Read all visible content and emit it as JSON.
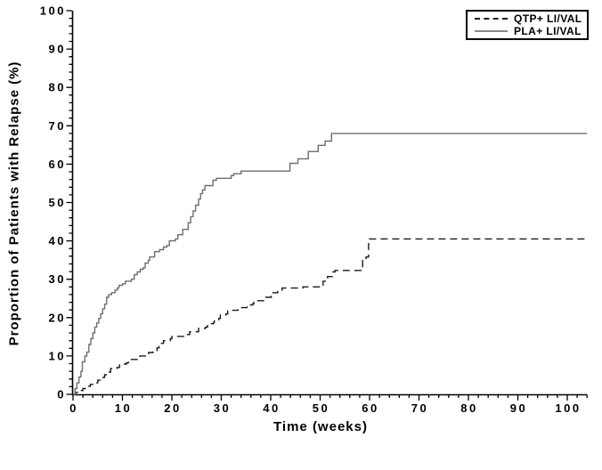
{
  "chart_data": {
    "type": "line",
    "subtype": "kaplan-meier-step",
    "title": "",
    "xlabel": "Time (weeks)",
    "ylabel": "Proportion of Patients with Relapse (%)",
    "xlim": [
      0,
      104
    ],
    "ylim": [
      0,
      100
    ],
    "x_ticks": [
      0,
      10,
      20,
      30,
      40,
      50,
      60,
      70,
      80,
      90,
      100
    ],
    "y_ticks": [
      0,
      10,
      20,
      30,
      40,
      50,
      60,
      70,
      80,
      90,
      100
    ],
    "minor_tick_step": 2,
    "grid": "off",
    "axis_color": "#000000",
    "legend": {
      "position": "top-right",
      "entries": [
        {
          "label": "QTP+ LI/VAL",
          "line_style": "dashed",
          "color": "#1a1a1a"
        },
        {
          "label": "PLA+ LI/VAL",
          "line_style": "solid",
          "color": "#8a8a8a"
        }
      ]
    },
    "series": [
      {
        "name": "QTP+ LI/VAL",
        "line_style": "dashed",
        "color": "#1a1a1a",
        "points": [
          [
            0,
            0
          ],
          [
            0.5,
            0.5
          ],
          [
            1.2,
            1.0
          ],
          [
            2.0,
            1.5
          ],
          [
            2.8,
            2.1
          ],
          [
            3.5,
            2.6
          ],
          [
            4.2,
            3.0
          ],
          [
            5.0,
            3.7
          ],
          [
            5.7,
            4.4
          ],
          [
            6.4,
            5.1
          ],
          [
            7.0,
            5.8
          ],
          [
            7.6,
            6.7
          ],
          [
            8.9,
            7.0
          ],
          [
            9.4,
            7.9
          ],
          [
            10.8,
            8.2
          ],
          [
            11.2,
            9.1
          ],
          [
            13.3,
            9.4
          ],
          [
            13.5,
            10.0
          ],
          [
            15.1,
            10.3
          ],
          [
            15.3,
            10.9
          ],
          [
            16.2,
            11.4
          ],
          [
            17.0,
            12.1
          ],
          [
            17.4,
            13.3
          ],
          [
            18.3,
            14.0
          ],
          [
            19.7,
            14.5
          ],
          [
            20.0,
            15.1
          ],
          [
            22.7,
            15.6
          ],
          [
            23.6,
            16.3
          ],
          [
            25.4,
            17.2
          ],
          [
            26.8,
            17.5
          ],
          [
            27.2,
            18.4
          ],
          [
            28.4,
            18.7
          ],
          [
            28.6,
            19.5
          ],
          [
            29.5,
            19.8
          ],
          [
            29.8,
            20.7
          ],
          [
            31.0,
            21.0
          ],
          [
            31.3,
            21.9
          ],
          [
            33.4,
            22.6
          ],
          [
            35.2,
            23.3
          ],
          [
            36.4,
            23.7
          ],
          [
            36.6,
            24.4
          ],
          [
            39.0,
            25.3
          ],
          [
            40.1,
            25.6
          ],
          [
            40.5,
            26.5
          ],
          [
            41.4,
            27.2
          ],
          [
            42.3,
            27.7
          ],
          [
            46.5,
            28.0
          ],
          [
            50.3,
            28.4
          ],
          [
            50.6,
            29.5
          ],
          [
            51.2,
            30.0
          ],
          [
            51.5,
            30.7
          ],
          [
            52.6,
            31.9
          ],
          [
            53.0,
            32.3
          ],
          [
            58.3,
            32.6
          ],
          [
            58.6,
            34.9
          ],
          [
            59.3,
            35.8
          ],
          [
            59.8,
            40.5
          ],
          [
            104,
            40.5
          ]
        ]
      },
      {
        "name": "PLA+ LI/VAL",
        "line_style": "solid",
        "color": "#6e6e6e",
        "points": [
          [
            0,
            0
          ],
          [
            0.4,
            1.5
          ],
          [
            0.8,
            3.0
          ],
          [
            1.2,
            4.5
          ],
          [
            1.6,
            6.0
          ],
          [
            1.9,
            8.5
          ],
          [
            2.4,
            10.0
          ],
          [
            2.8,
            11.0
          ],
          [
            3.2,
            13.0
          ],
          [
            3.6,
            14.5
          ],
          [
            4.0,
            16.0
          ],
          [
            4.4,
            17.5
          ],
          [
            4.8,
            18.6
          ],
          [
            5.2,
            19.8
          ],
          [
            5.6,
            21.0
          ],
          [
            6.0,
            22.3
          ],
          [
            6.4,
            23.5
          ],
          [
            6.8,
            25.3
          ],
          [
            7.2,
            26.0
          ],
          [
            7.8,
            26.5
          ],
          [
            8.5,
            27.2
          ],
          [
            9.0,
            27.7
          ],
          [
            9.3,
            28.4
          ],
          [
            10.0,
            28.8
          ],
          [
            10.6,
            29.5
          ],
          [
            11.8,
            30.0
          ],
          [
            12.4,
            31.2
          ],
          [
            13.0,
            31.9
          ],
          [
            13.6,
            32.6
          ],
          [
            14.2,
            33.0
          ],
          [
            14.6,
            34.2
          ],
          [
            15.2,
            34.9
          ],
          [
            15.5,
            35.8
          ],
          [
            16.5,
            37.2
          ],
          [
            17.5,
            37.7
          ],
          [
            18.3,
            38.4
          ],
          [
            19.0,
            38.8
          ],
          [
            19.5,
            40.0
          ],
          [
            20.7,
            40.5
          ],
          [
            21.2,
            41.6
          ],
          [
            22.2,
            43.0
          ],
          [
            23.3,
            44.7
          ],
          [
            23.8,
            46.3
          ],
          [
            24.3,
            47.8
          ],
          [
            24.8,
            49.3
          ],
          [
            25.4,
            50.9
          ],
          [
            25.8,
            52.3
          ],
          [
            26.2,
            53.3
          ],
          [
            26.7,
            54.4
          ],
          [
            28.3,
            55.8
          ],
          [
            29.0,
            56.3
          ],
          [
            32.0,
            57.0
          ],
          [
            32.5,
            57.5
          ],
          [
            34.0,
            58.2
          ],
          [
            43.9,
            60.2
          ],
          [
            45.5,
            61.4
          ],
          [
            47.6,
            63.3
          ],
          [
            49.6,
            64.9
          ],
          [
            51.0,
            66.0
          ],
          [
            52.3,
            68.0
          ],
          [
            104,
            68.0
          ]
        ]
      }
    ]
  }
}
